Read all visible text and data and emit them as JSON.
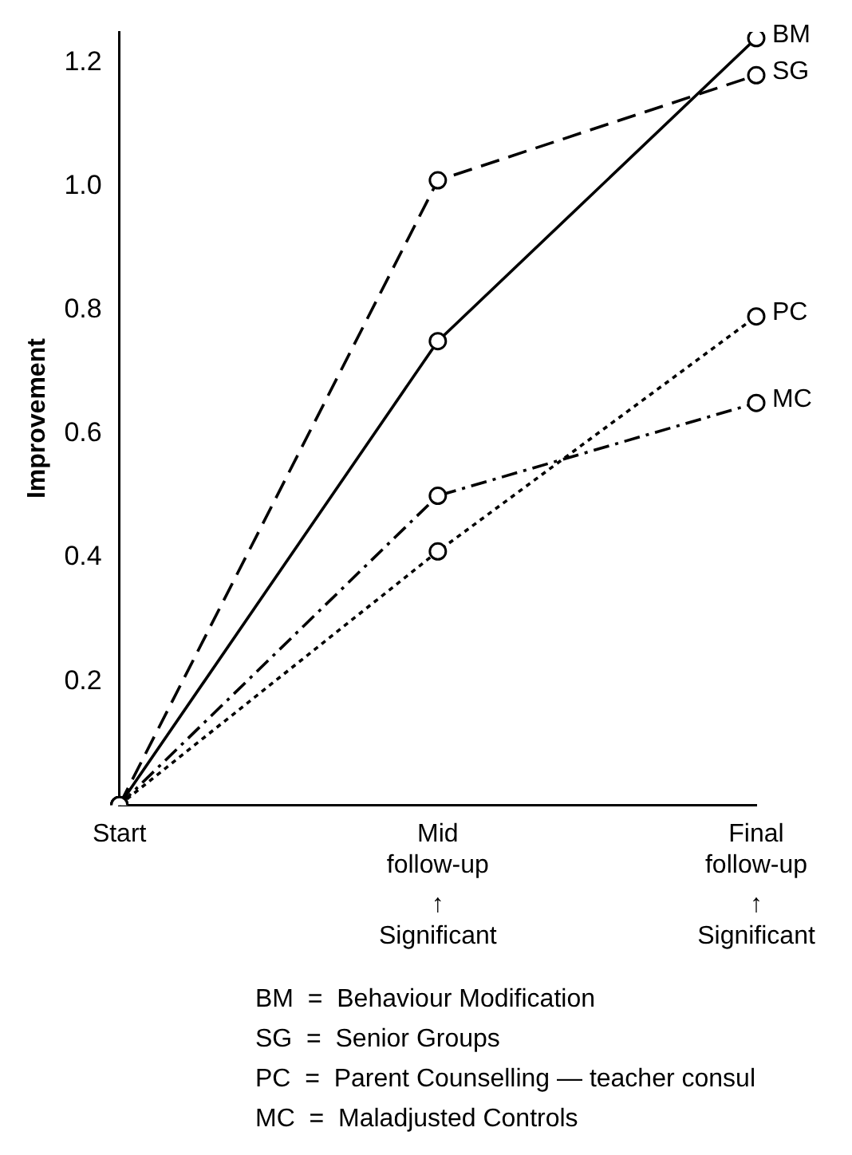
{
  "chart_data": {
    "type": "line",
    "ylabel": "Improvement",
    "categories": [
      "Start",
      "Mid follow-up",
      "Final follow-up"
    ],
    "series": [
      {
        "name": "BM",
        "color": "#000000",
        "line_style": "solid",
        "values": [
          0,
          0.75,
          1.24
        ]
      },
      {
        "name": "SG",
        "color": "#000000",
        "line_style": "dashed",
        "values": [
          0,
          1.01,
          1.18
        ]
      },
      {
        "name": "PC",
        "color": "#000000",
        "line_style": "dotted",
        "values": [
          0,
          0.41,
          0.79
        ]
      },
      {
        "name": "MC",
        "color": "#000000",
        "line_style": "dashdot",
        "values": [
          0,
          0.5,
          0.65
        ]
      }
    ],
    "ylim": [
      0,
      1.25
    ],
    "yticks": [
      0.2,
      0.4,
      0.6,
      0.8,
      {
        "value": 1,
        "label": "1.0"
      },
      1.2
    ],
    "grid": false,
    "legend": false,
    "marker": "circle",
    "annotations": [
      "↑ Significant",
      "↑ Significant",
      "BM  =  Behaviour Modification",
      "SG  =  Senior Groups",
      "PC  =  Parent Counselling — teacher consul",
      "MC  =  Maladjusted Controls"
    ]
  }
}
